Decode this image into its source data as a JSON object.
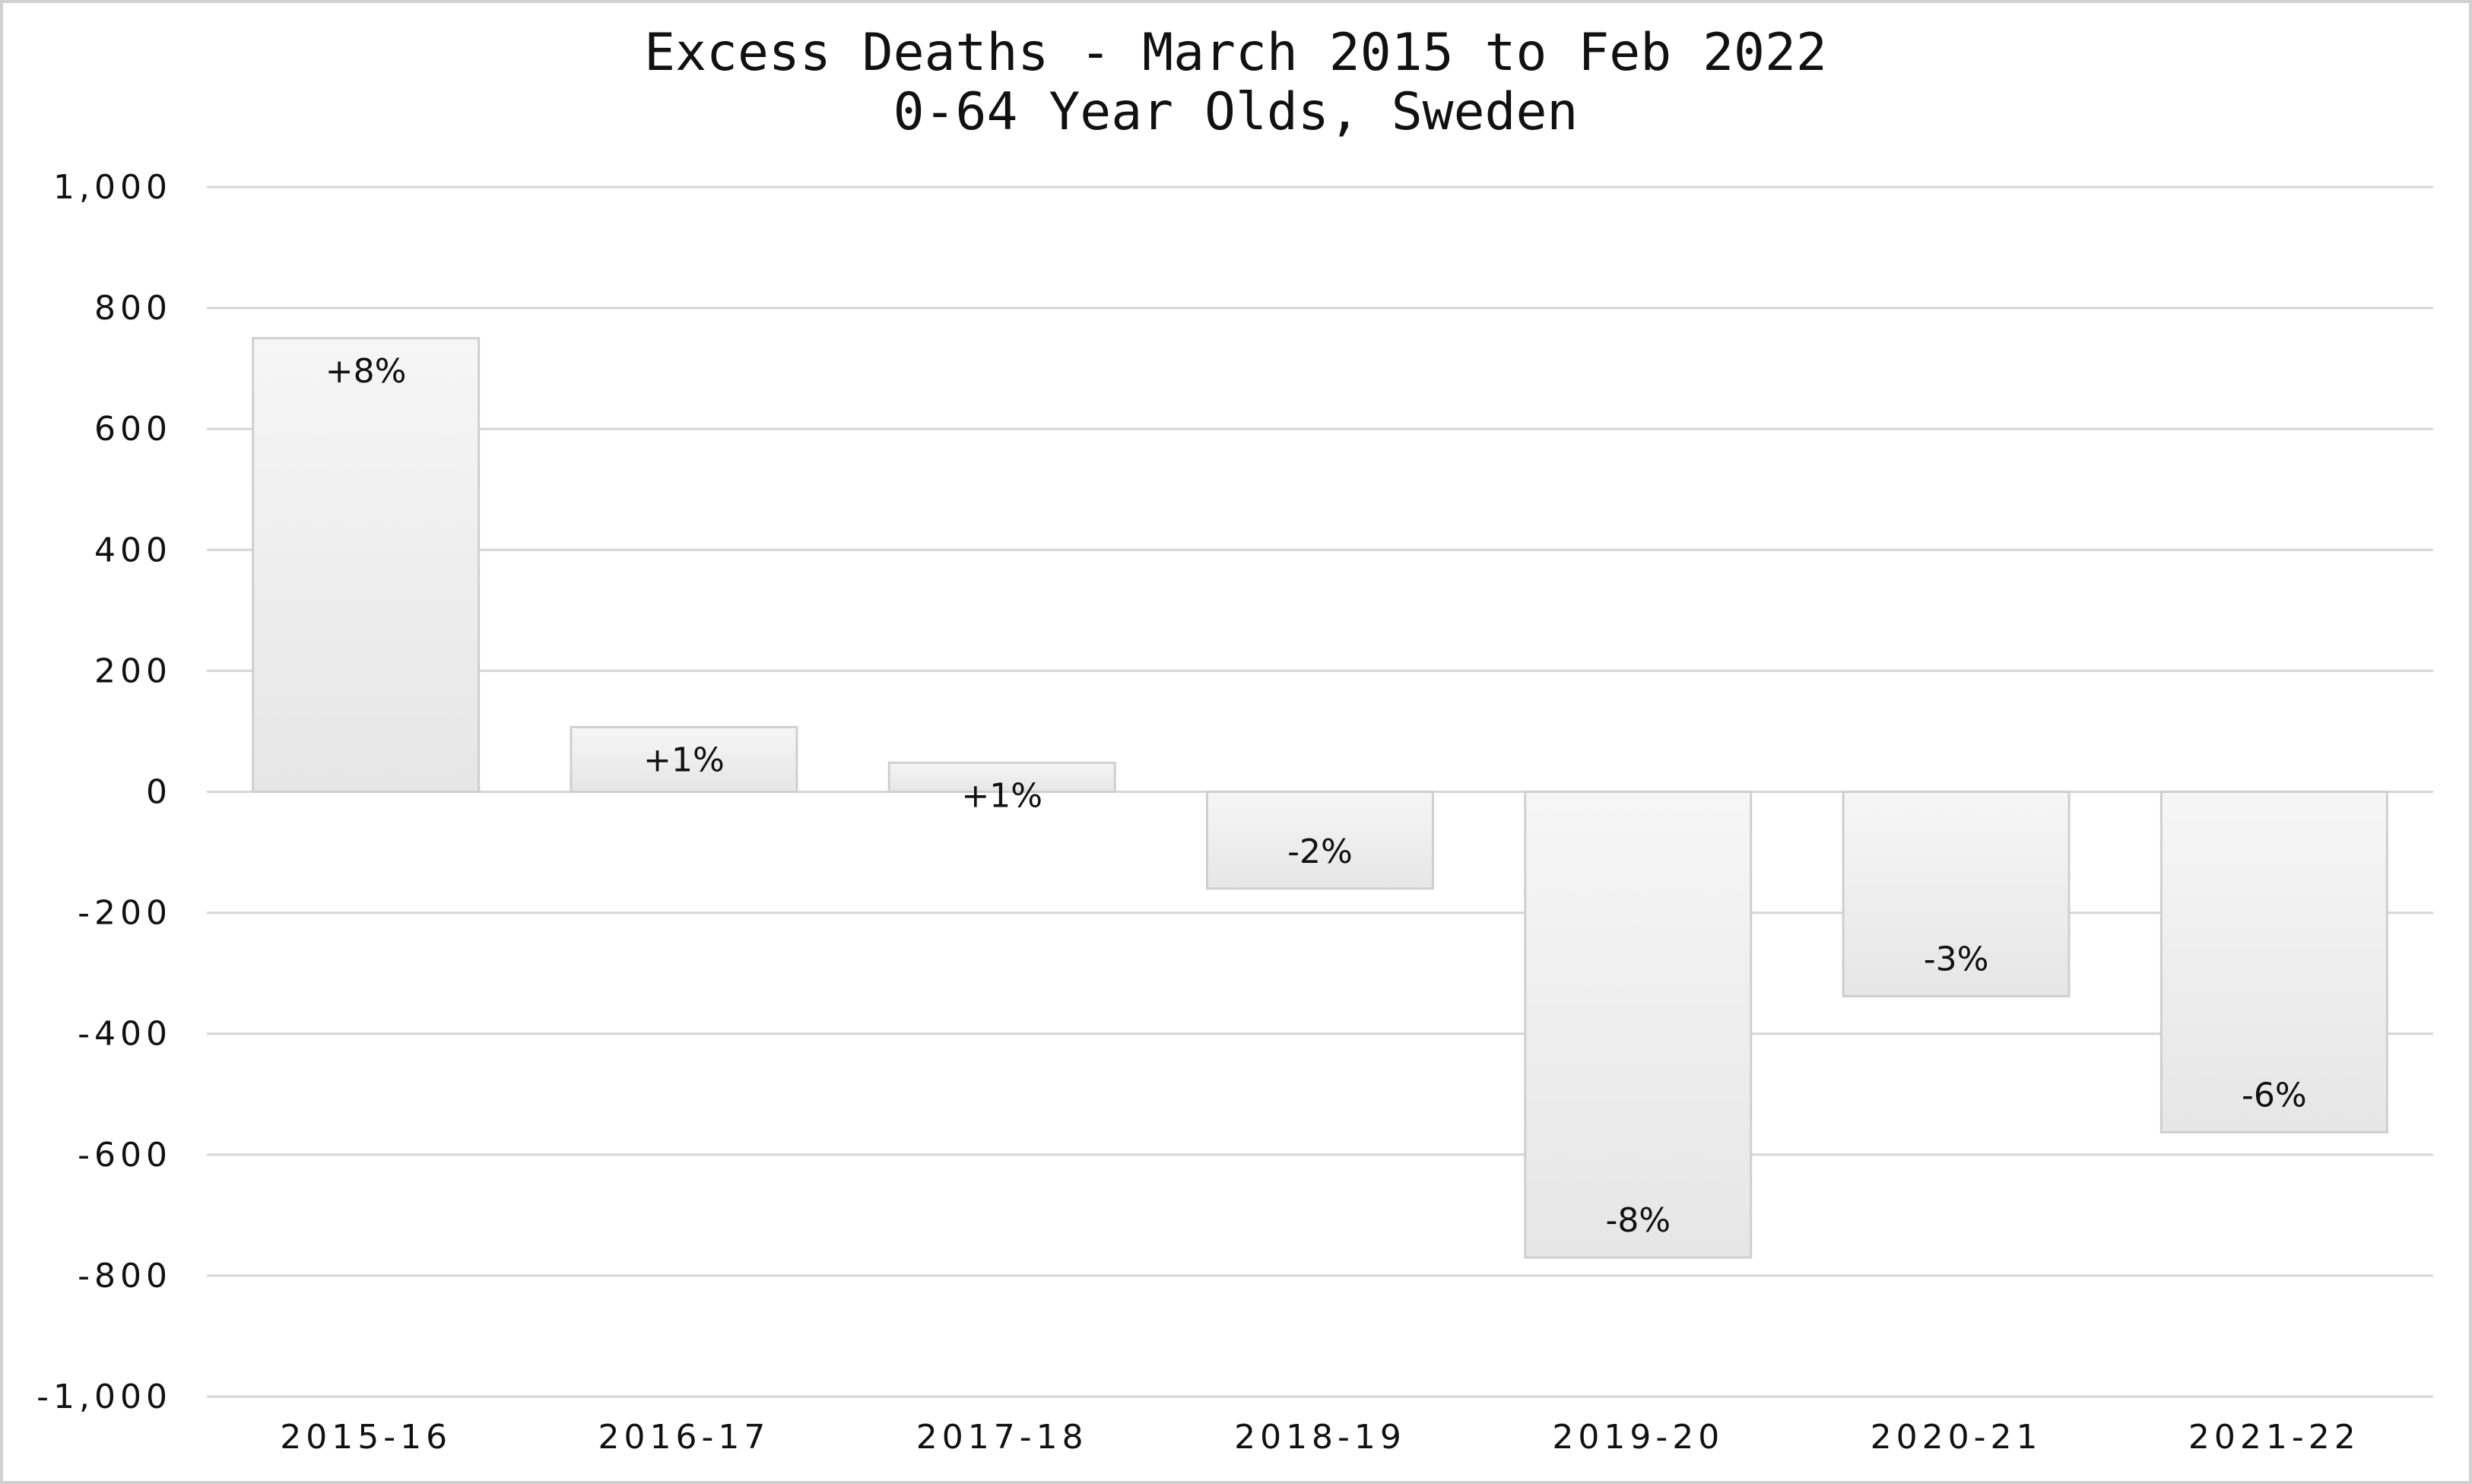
{
  "chart_data": {
    "type": "bar",
    "title": "Excess Deaths - March 2015 to Feb 2022",
    "subtitle": "0-64 Year Olds, Sweden",
    "xlabel": "",
    "ylabel": "",
    "categories": [
      "2015-16",
      "2016-17",
      "2017-18",
      "2018-19",
      "2019-20",
      "2020-21",
      "2021-22"
    ],
    "values": [
      750,
      107,
      48,
      -160,
      -770,
      -338,
      -563
    ],
    "data_labels": [
      "+8%",
      "+1%",
      "+1%",
      "-2%",
      "-8%",
      "-3%",
      "-6%"
    ],
    "ylim": [
      -1000,
      1000
    ],
    "yticks": [
      1000,
      800,
      600,
      400,
      200,
      0,
      -200,
      -400,
      -600,
      -800,
      -1000
    ],
    "ytick_labels": [
      "1,000",
      "800",
      "600",
      "400",
      "200",
      "0",
      "-200",
      "-400",
      "-600",
      "-800",
      "-1,000"
    ],
    "grid": true,
    "legend": "none",
    "colors": {
      "bar_top": "#f6f6f6",
      "bar_bottom": "#e6e6e6",
      "bar_border": "#cfcfcf",
      "grid": "#d6d6d6",
      "frame": "#d0d0d0",
      "text": "#111111"
    }
  }
}
